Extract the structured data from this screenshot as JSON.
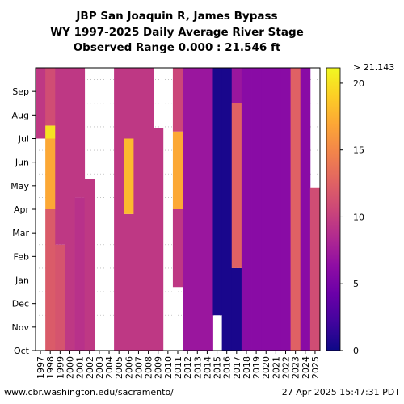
{
  "chart_data": {
    "type": "heatmap",
    "title": [
      "JBP San Joaquin R, James Bypass",
      "WY 1997-2025 Daily Average River Stage",
      "Observed Range 0.000 : 21.546 ft"
    ],
    "xlabel": "",
    "ylabel": "",
    "units": "ft",
    "x": [
      "1997",
      "1998",
      "1999",
      "2000",
      "2001",
      "2002",
      "2003",
      "2004",
      "2005",
      "2006",
      "2007",
      "2008",
      "2009",
      "2010",
      "2011",
      "2012",
      "2013",
      "2014",
      "2015",
      "2016",
      "2017",
      "2018",
      "2019",
      "2020",
      "2021",
      "2022",
      "2023",
      "2024",
      "2025"
    ],
    "y": [
      "Oct",
      "Nov",
      "Dec",
      "Jan",
      "Feb",
      "Mar",
      "Apr",
      "May",
      "Jun",
      "Jul",
      "Aug",
      "Sep"
    ],
    "colorbar": {
      "min": 0,
      "max": 21.143,
      "ticks": [
        0,
        5,
        10,
        15,
        20
      ],
      "max_label": "> 21.143",
      "colormap": "plasma"
    },
    "series": [
      {
        "year": "1997",
        "segments": [
          {
            "from": 9.0,
            "to": 12.0,
            "value": 9.5
          }
        ]
      },
      {
        "year": "1998",
        "segments": [
          {
            "from": 0,
            "to": 6.0,
            "value": 12.0
          },
          {
            "from": 6.0,
            "to": 9.0,
            "value": 17.0
          },
          {
            "from": 9.0,
            "to": 9.55,
            "value": 20.0
          },
          {
            "from": 9.55,
            "to": 12.0,
            "value": 11.0
          }
        ]
      },
      {
        "year": "1999",
        "segments": [
          {
            "from": 0,
            "to": 4.5,
            "value": 11.5
          },
          {
            "from": 4.5,
            "to": 12.0,
            "value": 9.5
          }
        ]
      },
      {
        "year": "2000",
        "segments": [
          {
            "from": 0,
            "to": 12.0,
            "value": 9.5
          }
        ]
      },
      {
        "year": "2001",
        "segments": [
          {
            "from": 0,
            "to": 6.5,
            "value": 9.0
          },
          {
            "from": 6.5,
            "to": 12.0,
            "value": 9.5
          }
        ]
      },
      {
        "year": "2002",
        "segments": [
          {
            "from": 0,
            "to": 7.3,
            "value": 9.5
          }
        ]
      },
      {
        "year": "2003",
        "segments": []
      },
      {
        "year": "2004",
        "segments": []
      },
      {
        "year": "2005",
        "segments": [
          {
            "from": 0,
            "to": 12.0,
            "value": 9.5
          }
        ]
      },
      {
        "year": "2006",
        "segments": [
          {
            "from": 0,
            "to": 5.8,
            "value": 9.5
          },
          {
            "from": 5.8,
            "to": 9.0,
            "value": 18.0
          },
          {
            "from": 9.0,
            "to": 12.0,
            "value": 9.5
          }
        ]
      },
      {
        "year": "2007",
        "segments": [
          {
            "from": 0,
            "to": 12.0,
            "value": 9.5
          }
        ]
      },
      {
        "year": "2008",
        "segments": [
          {
            "from": 0,
            "to": 12.0,
            "value": 9.5
          }
        ]
      },
      {
        "year": "2009",
        "segments": [
          {
            "from": 0,
            "to": 9.45,
            "value": 9.5
          }
        ]
      },
      {
        "year": "2010",
        "segments": []
      },
      {
        "year": "2011",
        "segments": [
          {
            "from": 2.7,
            "to": 6.0,
            "value": 9.5
          },
          {
            "from": 6.0,
            "to": 9.3,
            "value": 17.0
          },
          {
            "from": 9.3,
            "to": 12.0,
            "value": 10.5
          }
        ]
      },
      {
        "year": "2012",
        "segments": [
          {
            "from": 0,
            "to": 12.0,
            "value": 7.0
          }
        ]
      },
      {
        "year": "2013",
        "segments": [
          {
            "from": 0,
            "to": 12.0,
            "value": 7.0
          }
        ]
      },
      {
        "year": "2014",
        "segments": [
          {
            "from": 0,
            "to": 12.0,
            "value": 7.0
          }
        ]
      },
      {
        "year": "2015",
        "segments": [
          {
            "from": 1.5,
            "to": 12.0,
            "value": 0.5
          }
        ]
      },
      {
        "year": "2016",
        "segments": [
          {
            "from": 0,
            "to": 12.0,
            "value": 0.5
          }
        ]
      },
      {
        "year": "2017",
        "segments": [
          {
            "from": 0,
            "to": 3.5,
            "value": 0.5
          },
          {
            "from": 3.5,
            "to": 10.5,
            "value": 12.5
          },
          {
            "from": 10.5,
            "to": 12.0,
            "value": 7.0
          }
        ]
      },
      {
        "year": "2018",
        "segments": [
          {
            "from": 0,
            "to": 12.0,
            "value": 6.0
          }
        ]
      },
      {
        "year": "2019",
        "segments": [
          {
            "from": 0,
            "to": 12.0,
            "value": 6.0
          }
        ]
      },
      {
        "year": "2020",
        "segments": [
          {
            "from": 0,
            "to": 12.0,
            "value": 6.0
          }
        ]
      },
      {
        "year": "2021",
        "segments": [
          {
            "from": 0,
            "to": 12.0,
            "value": 6.0
          }
        ]
      },
      {
        "year": "2022",
        "segments": [
          {
            "from": 0,
            "to": 12.0,
            "value": 6.0
          }
        ]
      },
      {
        "year": "2023",
        "segments": [
          {
            "from": 0,
            "to": 12.0,
            "value": 12.5
          }
        ]
      },
      {
        "year": "2024",
        "segments": [
          {
            "from": 0,
            "to": 12.0,
            "value": 6.0
          }
        ]
      },
      {
        "year": "2025",
        "segments": [
          {
            "from": 0,
            "to": 6.9,
            "value": 11.0
          }
        ]
      }
    ]
  },
  "footer": {
    "source": "www.cbr.washington.edu/sacramento/",
    "timestamp": "27 Apr 2025 15:47:31 PDT"
  }
}
